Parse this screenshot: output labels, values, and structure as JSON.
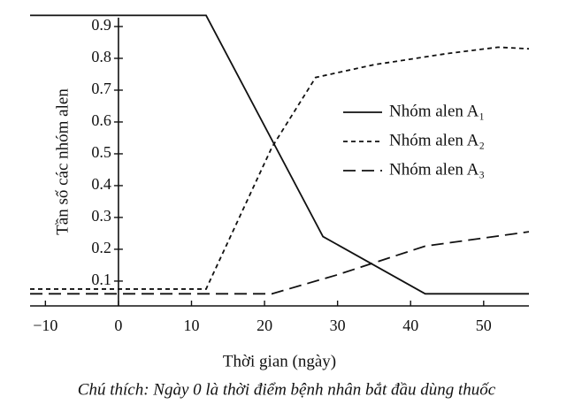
{
  "chart_data": {
    "type": "line",
    "y_label": "Tần số các nhóm alen",
    "x_label": "Thời gian (ngày)",
    "caption": "Chú thích: Ngày 0 là thời điểm bệnh nhân bắt đầu dùng thuốc",
    "xlim": [
      -12.1,
      56.2
    ],
    "ylim": [
      0.022,
      0.94
    ],
    "xticks": [
      {
        "value": -10,
        "label": "−10"
      },
      0,
      10,
      20,
      30,
      40,
      50
    ],
    "yticks": [
      0.1,
      0.2,
      0.3,
      0.4,
      0.5,
      0.6,
      0.7,
      0.8,
      0.9
    ],
    "legend": "right",
    "series": [
      {
        "name": "Nhóm alen A₁",
        "color": "#111111",
        "dash": "solid",
        "x": [
          -12.1,
          12,
          28,
          42,
          56.2
        ],
        "values": [
          0.935,
          0.935,
          0.24,
          0.06,
          0.06
        ]
      },
      {
        "name": "Nhóm alen A₂",
        "color": "#111111",
        "dash": "short",
        "x": [
          -12.1,
          12,
          21,
          27,
          35,
          45,
          52,
          56.2
        ],
        "values": [
          0.075,
          0.075,
          0.52,
          0.74,
          0.78,
          0.815,
          0.835,
          0.83
        ]
      },
      {
        "name": "Nhóm alen A₃",
        "color": "#111111",
        "dash": "long",
        "x": [
          -12.1,
          21,
          30,
          42,
          56.2
        ],
        "values": [
          0.06,
          0.06,
          0.12,
          0.21,
          0.255
        ]
      }
    ]
  }
}
